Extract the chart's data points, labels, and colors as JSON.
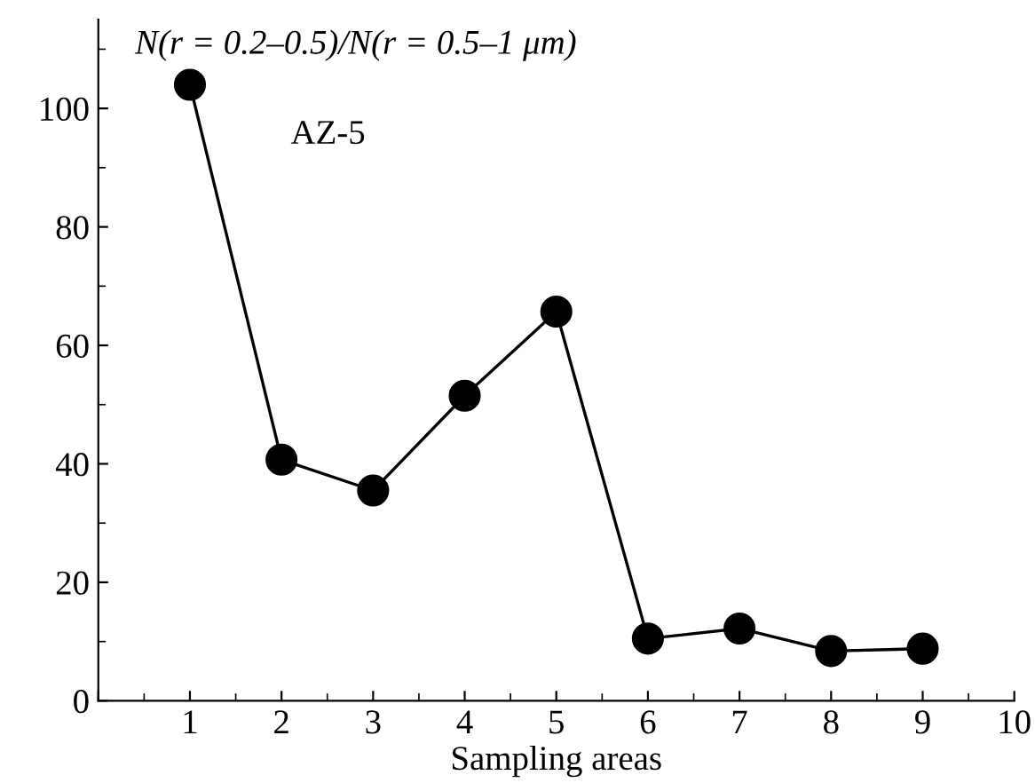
{
  "chart_data": {
    "type": "line",
    "title": "N(r = 0.2–0.5)/N(r = 0.5–1 μm)",
    "xlabel": "Sampling areas",
    "annotations": [
      "AZ-5"
    ],
    "x": [
      1,
      2,
      3,
      4,
      5,
      6,
      7,
      8,
      9
    ],
    "series": [
      {
        "color": "#000000",
        "values": [
          104,
          40.7,
          35.5,
          51.5,
          65.7,
          10.5,
          12.2,
          8.4,
          8.8
        ]
      }
    ],
    "marker": "circle",
    "line_style": "solid",
    "grid": false,
    "legend": false,
    "xlim": [
      0,
      10
    ],
    "xticks": [
      {
        "value": 0,
        "label": null
      },
      1,
      2,
      3,
      4,
      5,
      6,
      7,
      8,
      9,
      10
    ],
    "ylim": [
      0,
      115
    ],
    "yticks": [
      0,
      20,
      40,
      60,
      80,
      100
    ]
  }
}
